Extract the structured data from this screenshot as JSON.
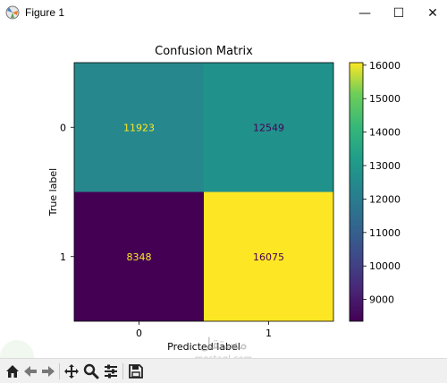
{
  "window": {
    "title": "Figure 1",
    "minimize_glyph": "—",
    "maximize_glyph": "☐",
    "close_glyph": "✕"
  },
  "chart_data": {
    "type": "heatmap",
    "title": "Confusion Matrix",
    "xlabel": "Predicted label",
    "ylabel": "True label",
    "x_ticks": [
      "0",
      "1"
    ],
    "y_ticks": [
      "0",
      "1"
    ],
    "matrix": [
      [
        11923,
        12549
      ],
      [
        8348,
        16075
      ]
    ],
    "colormap": "viridis",
    "colorbar": {
      "vmin": 8348,
      "vmax": 16075,
      "ticks": [
        9000,
        10000,
        11000,
        12000,
        13000,
        14000,
        15000,
        16000
      ]
    },
    "colors": {
      "cell_0_0": "#26888d",
      "cell_0_1": "#21918c",
      "cell_1_0": "#440154",
      "cell_1_1": "#fde725",
      "text_on_dark": "#fde725",
      "text_on_light": "#440154"
    }
  },
  "toolbar": {
    "icons": [
      "home-icon",
      "back-arrow-icon",
      "forward-arrow-icon",
      "pan-icon",
      "zoom-icon",
      "subplots-icon",
      "save-icon"
    ]
  },
  "watermark": {
    "arabic": "مستقل",
    "latin": "mostaql.com"
  }
}
